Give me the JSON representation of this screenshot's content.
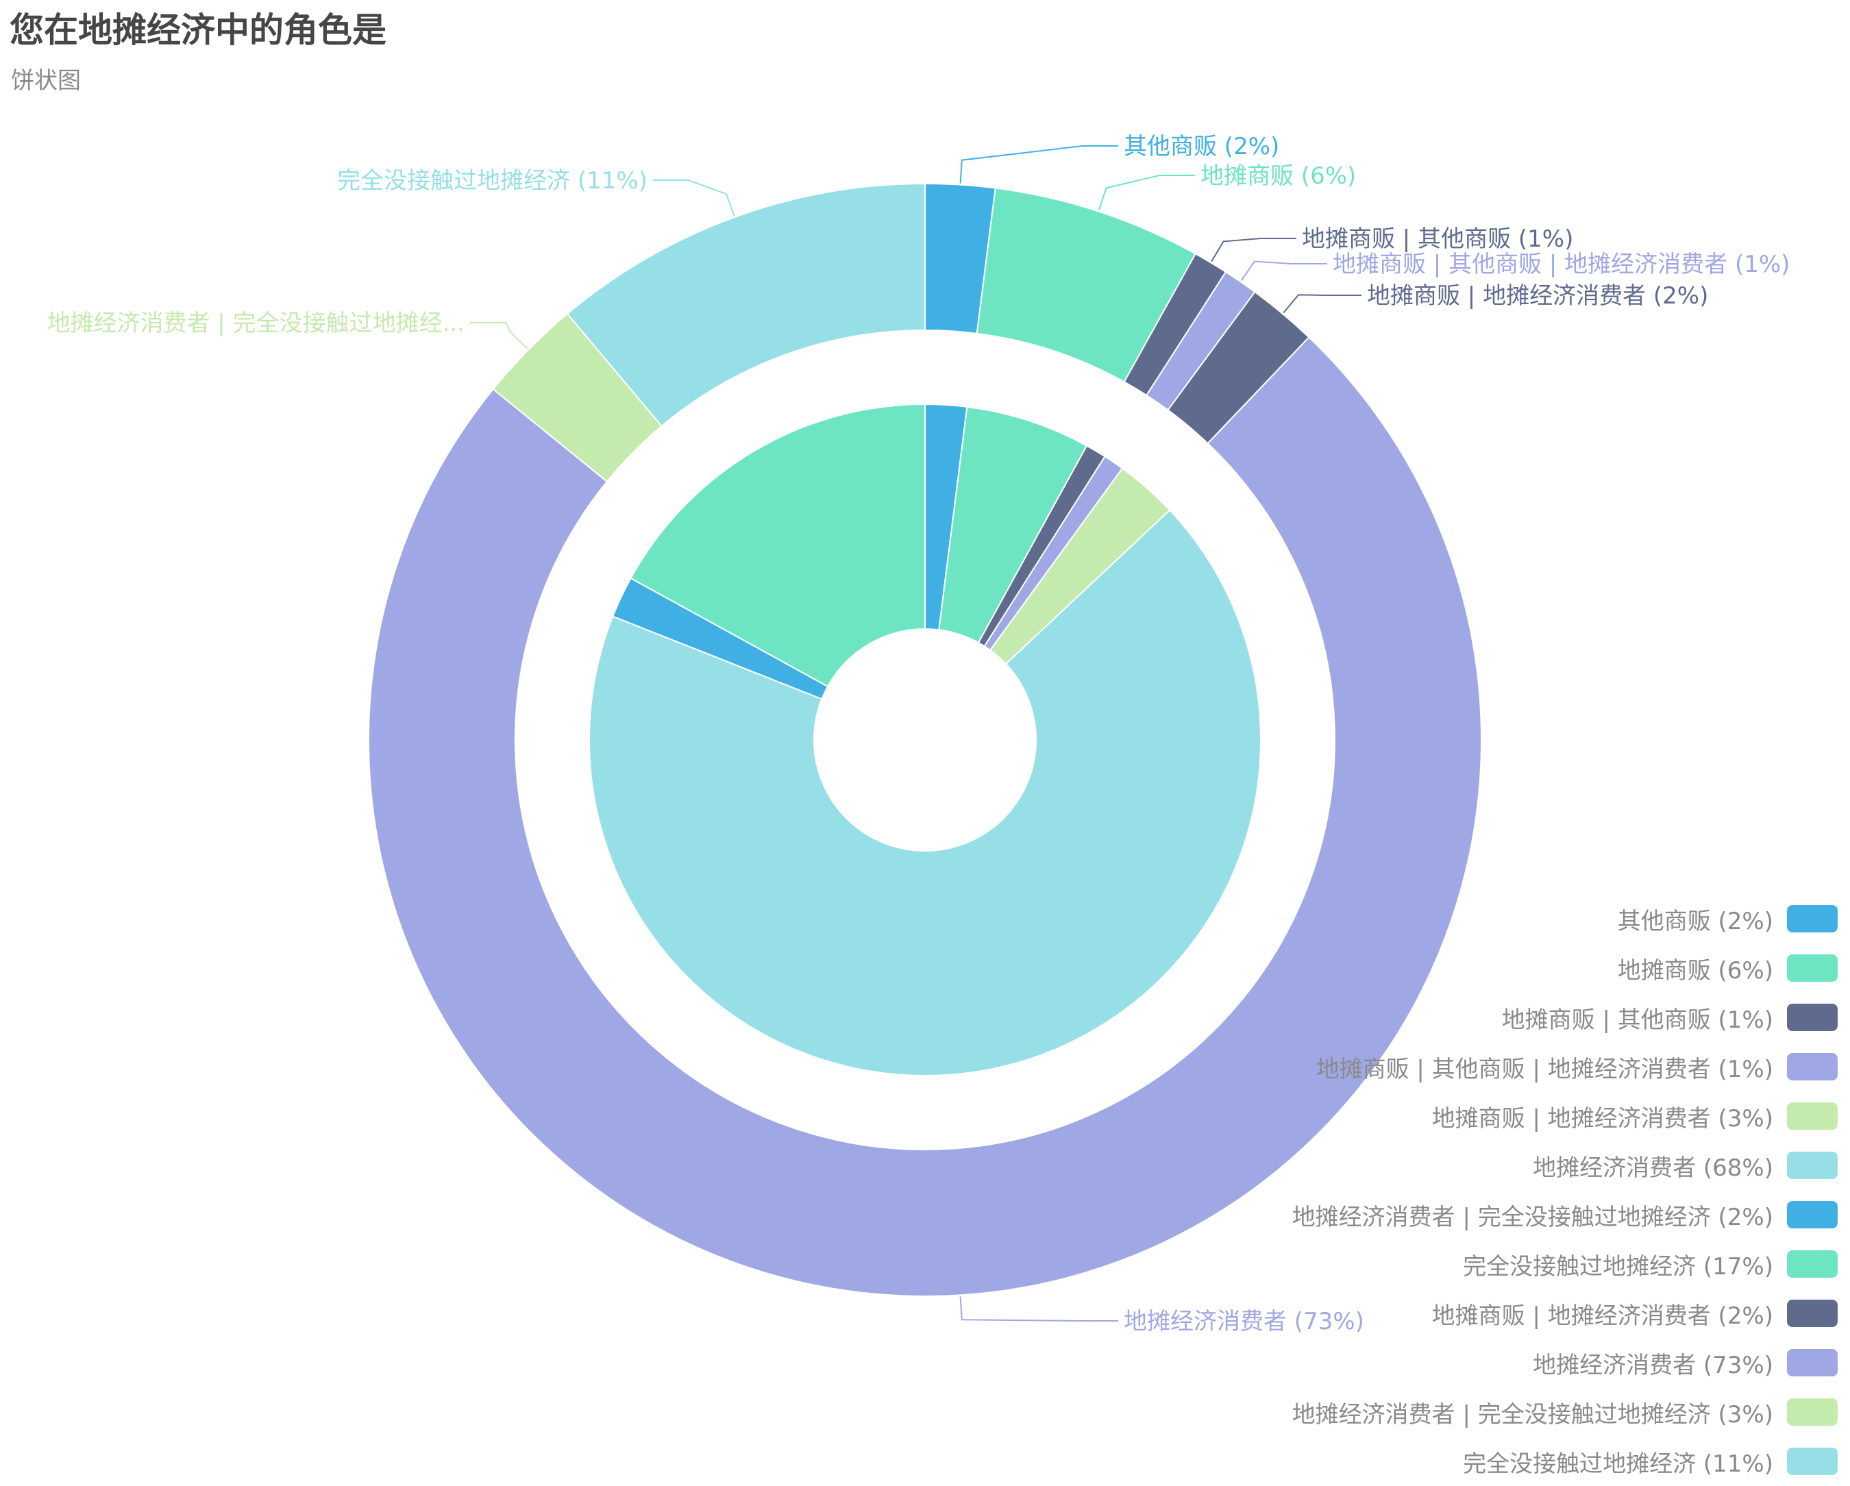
{
  "title": "您在地摊经济中的角色是",
  "subtitle": "饼状图",
  "chart_data": {
    "type": "pie",
    "title": "您在地摊经济中的角色是",
    "subtitle": "饼状图",
    "legend_position": "right-bottom",
    "colors": [
      "#40b0e4",
      "#6de5c3",
      "#5f6b8d",
      "#9fa7e4",
      "#c5eaad",
      "#96dfe7"
    ],
    "series": [
      {
        "name": "outer-ring",
        "ring": "outer",
        "categories": [
          "其他商贩",
          "地摊商贩",
          "地摊商贩 | 其他商贩",
          "地摊商贩 | 其他商贩 | 地摊经济消费者",
          "地摊商贩 | 地摊经济消费者",
          "地摊经济消费者",
          "地摊经济消费者 | 完全没接触过地摊经济",
          "完全没接触过地摊经济"
        ],
        "values": [
          2,
          6,
          1,
          1,
          2,
          73,
          3,
          11
        ],
        "labels": [
          "其他商贩 (2%)",
          "地摊商贩 (6%)",
          "地摊商贩 | 其他商贩 (1%)",
          "地摊商贩 | 其他商贩 | 地摊经济消费者 (1%)",
          "地摊商贩 | 地摊经济消费者 (2%)",
          "地摊经济消费者 (73%)",
          "地摊经济消费者 | 完全没接触过地摊经...",
          "完全没接触过地摊经济 (11%)"
        ],
        "colors": [
          "#40b0e4",
          "#6de5c3",
          "#5f6b8d",
          "#9fa7e4",
          "#5f6b8d",
          "#9fa7e4",
          "#c5eaad",
          "#96dfe7"
        ]
      },
      {
        "name": "inner-pie",
        "ring": "inner",
        "categories": [
          "其他商贩",
          "地摊商贩",
          "地摊商贩 | 其他商贩",
          "地摊商贩 | 其他商贩 | 地摊经济消费者",
          "地摊商贩 | 地摊经济消费者",
          "地摊经济消费者",
          "地摊经济消费者 | 完全没接触过地摊经济",
          "完全没接触过地摊经济"
        ],
        "values": [
          2,
          6,
          1,
          1,
          3,
          68,
          2,
          17
        ],
        "colors": [
          "#40b0e4",
          "#6de5c3",
          "#5f6b8d",
          "#9fa7e4",
          "#c5eaad",
          "#96dfe7",
          "#40b0e4",
          "#6de5c3"
        ]
      }
    ],
    "legend": [
      {
        "label": "其他商贩 (2%)",
        "color": "#40b0e4"
      },
      {
        "label": "地摊商贩 (6%)",
        "color": "#6de5c3"
      },
      {
        "label": "地摊商贩 | 其他商贩 (1%)",
        "color": "#5f6b8d"
      },
      {
        "label": "地摊商贩 | 其他商贩 | 地摊经济消费者 (1%)",
        "color": "#9fa7e4"
      },
      {
        "label": "地摊商贩 | 地摊经济消费者 (3%)",
        "color": "#c5eaad"
      },
      {
        "label": "地摊经济消费者 (68%)",
        "color": "#96dfe7"
      },
      {
        "label": "地摊经济消费者 | 完全没接触过地摊经济 (2%)",
        "color": "#40b0e4"
      },
      {
        "label": "完全没接触过地摊经济 (17%)",
        "color": "#6de5c3"
      },
      {
        "label": "地摊商贩 | 地摊经济消费者 (2%)",
        "color": "#5f6b8d"
      },
      {
        "label": "地摊经济消费者 (73%)",
        "color": "#9fa7e4"
      },
      {
        "label": "地摊经济消费者 | 完全没接触过地摊经济 (3%)",
        "color": "#c5eaad"
      },
      {
        "label": "完全没接触过地摊经济 (11%)",
        "color": "#96dfe7"
      }
    ]
  }
}
